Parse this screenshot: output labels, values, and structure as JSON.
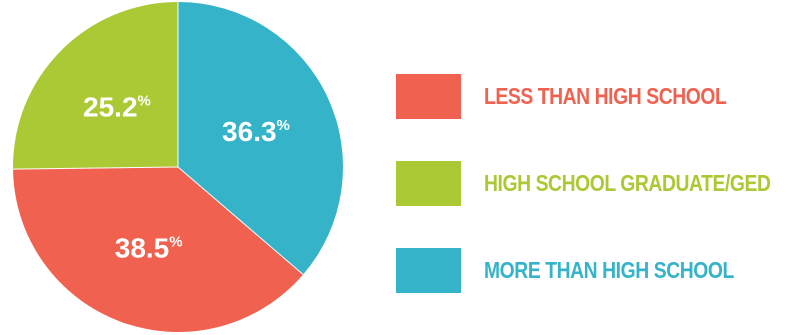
{
  "chart_data": {
    "type": "pie",
    "title": "",
    "slices": [
      {
        "label": "LESS THAN HIGH SCHOOL",
        "value": 38.5,
        "display": "38.5",
        "color": "#f0624f"
      },
      {
        "label": "HIGH SCHOOL GRADUATE/GED",
        "value": 25.2,
        "display": "25.2",
        "color": "#aac934"
      },
      {
        "label": "MORE THAN HIGH SCHOOL",
        "value": 36.3,
        "display": "36.3",
        "color": "#35b3c9"
      }
    ],
    "percent_symbol": "%",
    "start_position": "top, clockwise starting with MORE THAN HIGH SCHOOL",
    "legend_position": "right"
  }
}
